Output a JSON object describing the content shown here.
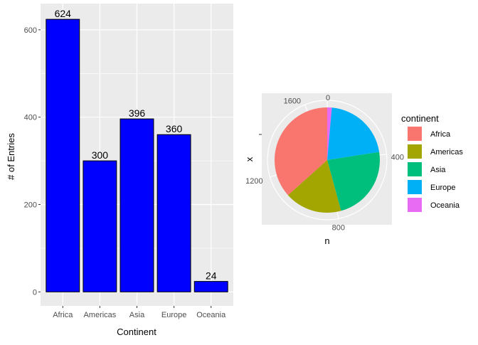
{
  "chart_data": [
    {
      "type": "bar",
      "categories": [
        "Africa",
        "Americas",
        "Asia",
        "Europe",
        "Oceania"
      ],
      "values": [
        624,
        300,
        396,
        360,
        24
      ],
      "data_labels": [
        "624",
        "300",
        "396",
        "360",
        "24"
      ],
      "xlabel": "Continent",
      "ylabel": "# of Entries",
      "ylim": [
        -32,
        660
      ],
      "yticks": [
        0,
        200,
        400,
        600
      ],
      "ytick_labels": [
        "0",
        "200",
        "400",
        "600"
      ],
      "grid": true,
      "bar_color": "#0000ff",
      "bar_outline": "#000000",
      "panel_color": "#ebebeb"
    },
    {
      "type": "pie",
      "categories": [
        "Africa",
        "Americas",
        "Asia",
        "Europe",
        "Oceania"
      ],
      "values": [
        624,
        300,
        396,
        360,
        24
      ],
      "colors": [
        "#f8766d",
        "#a3a500",
        "#00bf7d",
        "#00b0f6",
        "#e76bf3"
      ],
      "xlabel": "n",
      "ylabel": "x",
      "radial_ticks": [
        0,
        400,
        800,
        1200,
        1600
      ],
      "radial_tick_labels": [
        "0",
        "400",
        "800",
        "1200",
        "1600"
      ],
      "total": 1704,
      "legend_title": "continent",
      "legend_position": "right",
      "panel_color": "#ebebeb"
    }
  ]
}
